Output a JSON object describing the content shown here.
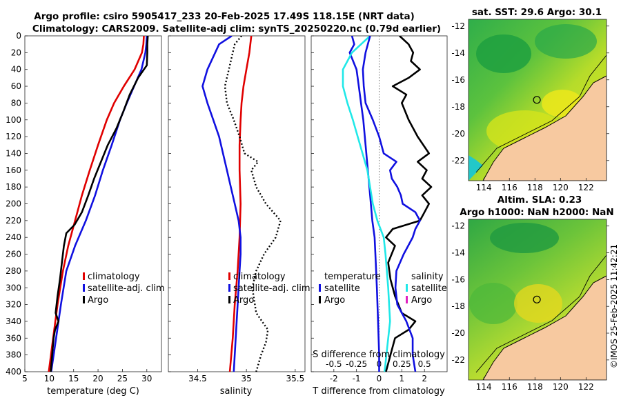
{
  "title_line1": "Argo profile: csiro 5905417_233 20-Feb-2025 17.49S 118.15E (NRT data)",
  "title_line2": "Climatology: CARS2009. Satellite-adj clim: synTS_20250220.nc (0.79d earlier)",
  "credit": "©IMOS 25-Feb-2025 11:42:21",
  "colors": {
    "climatology": "#e00000",
    "satellite": "#1010e0",
    "argo": "#000000",
    "cyan": "#20e8e8",
    "magenta": "#e020c0",
    "land": "#f7c9a0"
  },
  "chart_data": [
    {
      "type": "line",
      "name": "temperature",
      "xlabel": "temperature (deg C)",
      "ylabel": "",
      "xlim": [
        5,
        33
      ],
      "ylim": [
        400,
        0
      ],
      "xticks": [
        "5",
        "10",
        "15",
        "20",
        "25",
        "30"
      ],
      "xtick_values": [
        5,
        10,
        15,
        20,
        25,
        30
      ],
      "yticks": [
        "0",
        "20",
        "40",
        "60",
        "80",
        "100",
        "120",
        "140",
        "160",
        "180",
        "200",
        "220",
        "240",
        "260",
        "280",
        "300",
        "320",
        "340",
        "360",
        "380",
        "400"
      ],
      "legend": [
        "climatology",
        "satellite-adj. clim",
        "Argo"
      ],
      "series": [
        {
          "name": "climatology",
          "style": "solid",
          "depth": [
            0,
            10,
            20,
            40,
            60,
            80,
            100,
            130,
            160,
            190,
            220,
            250,
            280,
            320,
            360,
            400
          ],
          "values": [
            29.4,
            29.3,
            29.0,
            27.5,
            25.3,
            23.3,
            21.8,
            20.0,
            18.3,
            16.7,
            15.3,
            13.9,
            12.8,
            11.7,
            10.8,
            9.9
          ]
        },
        {
          "name": "satellite-adj. clim",
          "style": "solid",
          "depth": [
            0,
            10,
            20,
            40,
            60,
            80,
            100,
            130,
            160,
            190,
            220,
            250,
            280,
            320,
            360,
            400
          ],
          "values": [
            30.0,
            29.9,
            29.7,
            28.9,
            27.4,
            25.9,
            24.5,
            22.8,
            21.0,
            19.4,
            17.5,
            15.3,
            13.5,
            12.4,
            11.4,
            10.4
          ]
        },
        {
          "name": "Argo",
          "style": "solid",
          "depth": [
            0,
            10,
            20,
            35,
            50,
            70,
            90,
            110,
            130,
            150,
            170,
            190,
            210,
            225,
            235,
            250,
            270,
            290,
            310,
            330,
            340,
            350,
            360,
            380,
            400
          ],
          "values": [
            30.2,
            30.1,
            30.1,
            30.0,
            28.2,
            26.5,
            25.2,
            23.8,
            22.0,
            20.6,
            19.2,
            18.0,
            16.7,
            15.2,
            13.5,
            13.0,
            12.6,
            12.2,
            11.7,
            11.3,
            11.9,
            11.2,
            10.9,
            10.6,
            10.3
          ]
        }
      ]
    },
    {
      "type": "line",
      "name": "salinity",
      "xlabel": "salinity",
      "xlim": [
        34.2,
        35.6
      ],
      "ylim": [
        400,
        0
      ],
      "xticks": [
        "34.5",
        "35",
        "35.5"
      ],
      "xtick_values": [
        34.5,
        35,
        35.5
      ],
      "legend": [
        "climatology",
        "satellite-adj. clim",
        "Argo"
      ],
      "series": [
        {
          "name": "climatology",
          "style": "solid",
          "depth": [
            0,
            20,
            40,
            60,
            80,
            100,
            130,
            160,
            200,
            240,
            280,
            320,
            360,
            400
          ],
          "values": [
            35.05,
            35.03,
            35.0,
            34.97,
            34.95,
            34.94,
            34.93,
            34.93,
            34.94,
            34.93,
            34.91,
            34.88,
            34.86,
            34.83
          ]
        },
        {
          "name": "satellite-adj. clim",
          "style": "solid",
          "depth": [
            0,
            10,
            20,
            40,
            60,
            80,
            100,
            120,
            140,
            160,
            180,
            200,
            220,
            240,
            260,
            280,
            300,
            340,
            380,
            400
          ],
          "values": [
            34.85,
            34.72,
            34.68,
            34.6,
            34.55,
            34.6,
            34.66,
            34.72,
            34.76,
            34.8,
            34.84,
            34.88,
            34.92,
            34.94,
            34.94,
            34.93,
            34.92,
            34.9,
            34.88,
            34.87
          ]
        },
        {
          "name": "Argo",
          "style": "dotted",
          "depth": [
            0,
            10,
            20,
            40,
            60,
            80,
            100,
            120,
            140,
            150,
            160,
            180,
            200,
            220,
            240,
            260,
            280,
            300,
            330,
            350,
            365,
            380,
            400
          ],
          "values": [
            34.95,
            34.88,
            34.86,
            34.82,
            34.78,
            34.8,
            34.87,
            34.93,
            34.98,
            35.12,
            35.05,
            35.1,
            35.2,
            35.35,
            35.3,
            35.18,
            35.1,
            35.06,
            35.1,
            35.22,
            35.2,
            35.15,
            35.1
          ]
        }
      ]
    },
    {
      "type": "line",
      "name": "difference",
      "xlabel": "T difference from climatology",
      "xlabel_top": "S difference from climatology",
      "xlim": [
        -3,
        3
      ],
      "ylim": [
        400,
        0
      ],
      "xticks": [
        "-2",
        "-1",
        "0",
        "1",
        "2"
      ],
      "xtick_values": [
        -2,
        -1,
        0,
        1,
        2
      ],
      "xticks_top": [
        "-0.5",
        "-0.25",
        "0",
        "0.25",
        "0.5"
      ],
      "xticks_top_values": [
        -0.5,
        -0.25,
        0,
        0.25,
        0.5
      ],
      "legend_left": {
        "title": "temperature",
        "items": [
          "satellite",
          "Argo"
        ]
      },
      "legend_right": {
        "title": "salinity",
        "items": [
          "satellite",
          "Argo"
        ]
      },
      "series": [
        {
          "name": "T satellite",
          "style": "solid",
          "depth": [
            0,
            10,
            20,
            40,
            60,
            80,
            100,
            130,
            160,
            190,
            220,
            240,
            270,
            300,
            340,
            380,
            400
          ],
          "values": [
            -1.2,
            -1.1,
            -1.3,
            -1.0,
            -0.9,
            -0.8,
            -0.7,
            -0.6,
            -0.5,
            -0.4,
            -0.3,
            -0.2,
            -0.15,
            -0.1,
            -0.05,
            0.0,
            0.0
          ]
        },
        {
          "name": "S satellite",
          "style": "solid",
          "depth": [
            0,
            20,
            40,
            60,
            80,
            100,
            130,
            160,
            200,
            220,
            240,
            260,
            300,
            340,
            380,
            400
          ],
          "values": [
            -0.1,
            -0.3,
            -0.4,
            -0.4,
            -0.35,
            -0.29,
            -0.21,
            -0.13,
            -0.07,
            -0.02,
            0.05,
            0.07,
            0.1,
            0.12,
            0.08,
            0.06
          ]
        },
        {
          "name": "T Argo",
          "style": "solid",
          "depth": [
            0,
            10,
            20,
            30,
            40,
            50,
            60,
            70,
            80,
            100,
            120,
            140,
            150,
            160,
            170,
            180,
            190,
            200,
            210,
            220,
            230,
            240,
            250,
            270,
            290,
            310,
            330,
            340,
            350,
            360,
            380,
            400
          ],
          "values": [
            0.9,
            1.3,
            1.5,
            1.4,
            1.8,
            1.3,
            0.6,
            1.2,
            1.0,
            1.3,
            1.7,
            2.2,
            1.7,
            2.1,
            1.9,
            2.3,
            1.9,
            2.2,
            2.0,
            1.8,
            0.6,
            0.3,
            0.7,
            0.4,
            0.5,
            0.7,
            1.0,
            1.6,
            1.3,
            0.7,
            0.5,
            0.3
          ]
        },
        {
          "name": "S Argo",
          "style": "solid",
          "depth": [
            0,
            20,
            40,
            60,
            80,
            100,
            120,
            140,
            150,
            160,
            170,
            180,
            190,
            200,
            210,
            220,
            230,
            240,
            260,
            280,
            300,
            320,
            340,
            360,
            380,
            400
          ],
          "values": [
            -0.1,
            -0.15,
            -0.18,
            -0.17,
            -0.15,
            -0.07,
            0.0,
            0.05,
            0.19,
            0.12,
            0.14,
            0.2,
            0.24,
            0.26,
            0.4,
            0.45,
            0.4,
            0.37,
            0.27,
            0.19,
            0.18,
            0.2,
            0.3,
            0.37,
            0.37,
            0.4
          ]
        }
      ]
    },
    {
      "type": "heatmap",
      "name": "sat-sst-map",
      "title": "sat. SST: 29.6 Argo: 30.1",
      "xticks": [
        "114",
        "116",
        "118",
        "120",
        "122"
      ],
      "xtick_values": [
        114,
        116,
        118,
        120,
        122
      ],
      "yticks": [
        "-12",
        "-14",
        "-16",
        "-18",
        "-20",
        "-22"
      ],
      "ytick_values": [
        -12,
        -14,
        -16,
        -18,
        -20,
        -22
      ],
      "xlim": [
        112.8,
        123.6
      ],
      "ylim": [
        -23.5,
        -11.5
      ],
      "marker": {
        "lon": 118.15,
        "lat": -17.49
      }
    },
    {
      "type": "heatmap",
      "name": "sla-map",
      "title_line1": "Altim. SLA: 0.23",
      "title_line2": "Argo h1000: NaN h2000: NaN",
      "xticks": [
        "114",
        "116",
        "118",
        "120",
        "122"
      ],
      "xtick_values": [
        114,
        116,
        118,
        120,
        122
      ],
      "yticks": [
        "-12",
        "-14",
        "-16",
        "-18",
        "-20",
        "-22"
      ],
      "ytick_values": [
        -12,
        -14,
        -16,
        -18,
        -20,
        -22
      ],
      "xlim": [
        112.8,
        123.6
      ],
      "ylim": [
        -23.5,
        -11.5
      ],
      "marker": {
        "lon": 118.15,
        "lat": -17.49
      }
    }
  ]
}
